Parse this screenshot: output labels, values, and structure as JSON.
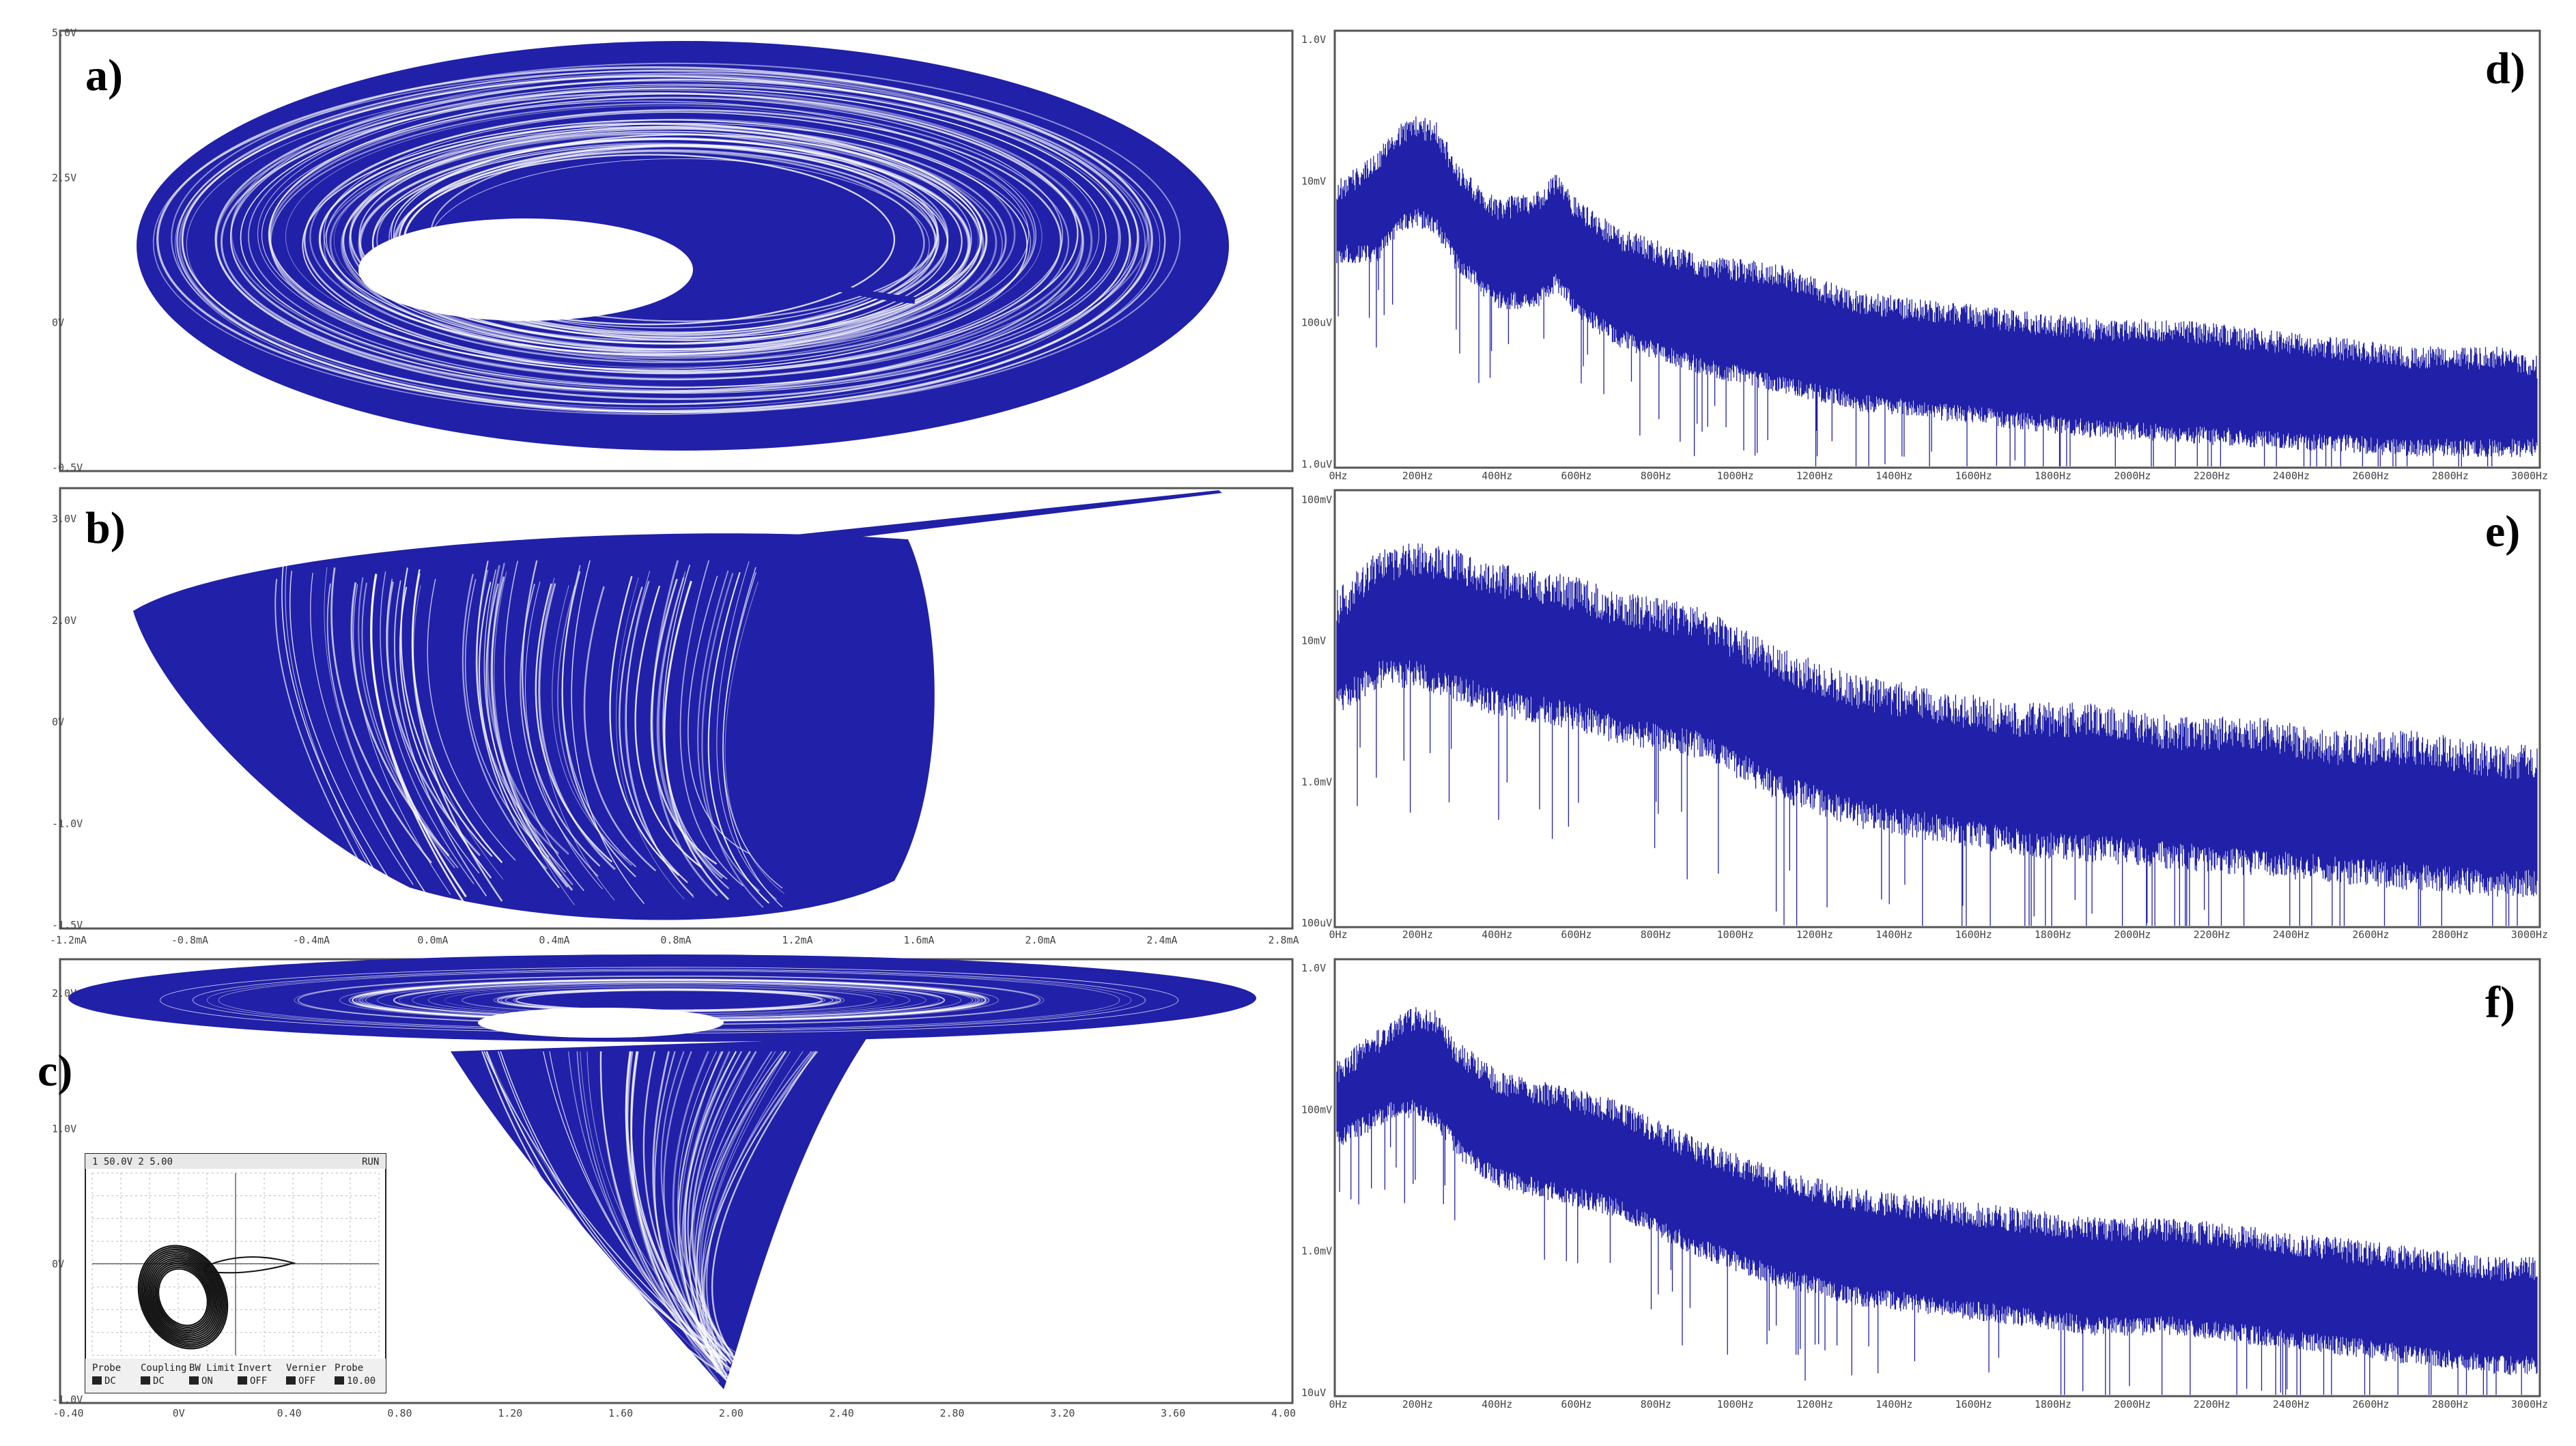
{
  "figure": {
    "trace_color": "#2020a8",
    "panel_labels": {
      "a": "a)",
      "b": "b)",
      "c": "c)",
      "d": "d)",
      "e": "e)",
      "f": "f)"
    }
  },
  "chart_data": [
    {
      "id": "a",
      "type": "scatter",
      "title": "",
      "xlabel": "",
      "ylabel": "",
      "description": "phase portrait (chaotic attractor, double-scroll ring with central hole)",
      "y_ticks": [
        "5.0V",
        "2.5V",
        "0V",
        "-0.5V"
      ],
      "x_ticks": []
    },
    {
      "id": "b",
      "type": "scatter",
      "title": "",
      "xlabel": "",
      "ylabel": "",
      "description": "phase portrait (chaotic attractor, lobe with tail to upper right)",
      "y_ticks": [
        "3.0V",
        "2.0V",
        "0V",
        "-1.0V",
        "-1.5V"
      ],
      "x_ticks": [
        "-1.2mA",
        "-0.8mA",
        "-0.4mA",
        "0.0mA",
        "0.4mA",
        "0.8mA",
        "1.2mA",
        "1.6mA",
        "2.0mA",
        "2.4mA",
        "2.8mA"
      ]
    },
    {
      "id": "c",
      "type": "scatter",
      "title": "",
      "xlabel": "",
      "ylabel": "",
      "description": "phase portrait (disk with downward funnel) with oscilloscope inset",
      "y_ticks": [
        "2.0V",
        "1.0V",
        "0V",
        "-1.0V"
      ],
      "x_ticks": [
        "-0.40",
        "0V",
        "0.40",
        "0.80",
        "1.20",
        "1.60",
        "2.00",
        "2.40",
        "2.80",
        "3.20",
        "3.60",
        "4.00"
      ],
      "inset": {
        "header_left": "1 50.0V   2 5.00",
        "header_right": "RUN",
        "footer_labels": [
          "Probe",
          "Coupling",
          "BW Limit",
          "Invert",
          "Vernier",
          "Probe"
        ],
        "footer_values": [
          "DC",
          "DC",
          "ON",
          "OFF",
          "OFF",
          "10.00"
        ]
      }
    },
    {
      "id": "d",
      "type": "line",
      "title": "",
      "xlabel": "",
      "ylabel": "",
      "y_scale": "log",
      "y_ticks": [
        "1.0V",
        "10mV",
        "100uV",
        "1.0uV"
      ],
      "x_ticks": [
        "0Hz",
        "200Hz",
        "400Hz",
        "600Hz",
        "800Hz",
        "1000Hz",
        "1200Hz",
        "1400Hz",
        "1600Hz",
        "1800Hz",
        "2000Hz",
        "2200Hz",
        "2400Hz",
        "2600Hz",
        "2800Hz",
        "3000Hz"
      ],
      "envelope_freq": [
        0,
        100,
        150,
        200,
        250,
        300,
        400,
        500,
        550,
        600,
        700,
        900,
        1100,
        1300,
        1500,
        1700,
        1900,
        2100,
        2300,
        2500,
        2700,
        2900,
        3000
      ],
      "envelope_top_log10": [
        -2.1,
        -1.8,
        -1.5,
        -1.4,
        -1.45,
        -1.9,
        -2.3,
        -2.2,
        -2.0,
        -2.3,
        -2.6,
        -2.9,
        -3.0,
        -3.3,
        -3.4,
        -3.5,
        -3.6,
        -3.6,
        -3.7,
        -3.8,
        -3.9,
        -3.9,
        -4.0
      ],
      "envelope_bottom_log10": [
        -3.0,
        -3.0,
        -2.7,
        -2.6,
        -2.7,
        -3.1,
        -3.5,
        -3.5,
        -3.3,
        -3.6,
        -3.9,
        -4.2,
        -4.4,
        -4.6,
        -4.7,
        -4.8,
        -4.9,
        -4.95,
        -5.0,
        -5.05,
        -5.1,
        -5.1,
        -5.1
      ]
    },
    {
      "id": "e",
      "type": "line",
      "title": "",
      "xlabel": "",
      "ylabel": "",
      "y_scale": "log",
      "y_ticks": [
        "100mV",
        "10mV",
        "1.0mV",
        "100uV"
      ],
      "x_ticks": [
        "0Hz",
        "200Hz",
        "400Hz",
        "600Hz",
        "800Hz",
        "1000Hz",
        "1200Hz",
        "1400Hz",
        "1600Hz",
        "1800Hz",
        "2000Hz",
        "2200Hz",
        "2400Hz",
        "2600Hz",
        "2800Hz",
        "3000Hz"
      ],
      "envelope_freq": [
        0,
        100,
        200,
        300,
        400,
        500,
        600,
        700,
        900,
        1100,
        1300,
        1500,
        1700,
        1900,
        2100,
        2300,
        2500,
        2700,
        2900,
        3000
      ],
      "envelope_top_log10": [
        -1.9,
        -1.6,
        -1.55,
        -1.6,
        -1.7,
        -1.75,
        -1.8,
        -1.9,
        -2.0,
        -2.3,
        -2.5,
        -2.6,
        -2.7,
        -2.7,
        -2.8,
        -2.8,
        -2.9,
        -2.9,
        -3.0,
        -3.0
      ],
      "envelope_bottom_log10": [
        -2.8,
        -2.6,
        -2.6,
        -2.7,
        -2.8,
        -2.85,
        -2.9,
        -3.0,
        -3.1,
        -3.4,
        -3.6,
        -3.7,
        -3.8,
        -3.85,
        -3.9,
        -3.95,
        -4.0,
        -4.05,
        -4.1,
        -4.1
      ]
    },
    {
      "id": "f",
      "type": "line",
      "title": "",
      "xlabel": "",
      "ylabel": "",
      "y_scale": "log",
      "y_ticks": [
        "1.0V",
        "100mV",
        "1.0mV",
        "10uV"
      ],
      "x_ticks": [
        "0Hz",
        "200Hz",
        "400Hz",
        "600Hz",
        "800Hz",
        "1000Hz",
        "1200Hz",
        "1400Hz",
        "1600Hz",
        "1800Hz",
        "2000Hz",
        "2200Hz",
        "2400Hz",
        "2600Hz",
        "2800Hz",
        "3000Hz"
      ],
      "envelope_freq": [
        0,
        100,
        150,
        200,
        250,
        300,
        400,
        500,
        600,
        700,
        900,
        1100,
        1300,
        1500,
        1700,
        1900,
        2100,
        2300,
        2500,
        2700,
        2900,
        3000
      ],
      "envelope_top_log10": [
        -1.6,
        -1.3,
        -1.15,
        -1.05,
        -1.1,
        -1.4,
        -1.7,
        -1.8,
        -1.9,
        -2.0,
        -2.4,
        -2.7,
        -2.9,
        -3.0,
        -3.1,
        -3.2,
        -3.2,
        -3.3,
        -3.4,
        -3.5,
        -3.6,
        -3.6
      ],
      "envelope_bottom_log10": [
        -2.5,
        -2.3,
        -2.2,
        -2.2,
        -2.3,
        -2.6,
        -2.9,
        -3.0,
        -3.1,
        -3.2,
        -3.6,
        -3.9,
        -4.1,
        -4.2,
        -4.3,
        -4.4,
        -4.4,
        -4.5,
        -4.6,
        -4.7,
        -4.8,
        -4.8
      ]
    }
  ]
}
